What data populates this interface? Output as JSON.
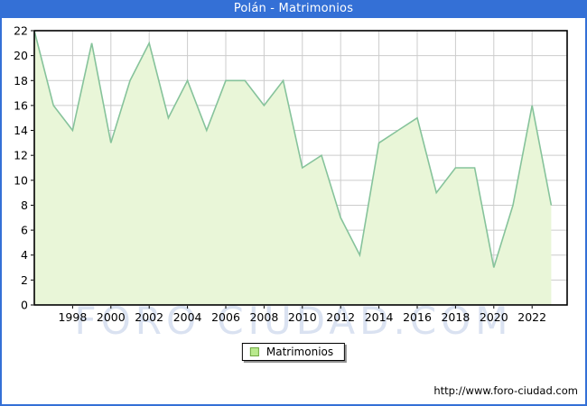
{
  "window": {
    "title": "Polán - Matrimonios"
  },
  "colors": {
    "titlebar_bg": "#3470d6",
    "titlebar_text": "#ffffff",
    "frame_border": "#3470d6",
    "plot_bg": "#ffffff",
    "plot_border": "#000000",
    "grid": "#cccccc",
    "area_fill": "#e9f6d8",
    "area_stroke": "#86c39b",
    "legend_swatch_fill": "#b9e98d",
    "legend_swatch_border": "#70a842",
    "watermark_text_color": "#d7dff0",
    "axis_text": "#000000"
  },
  "chart_data": {
    "type": "area",
    "title": "Polán - Matrimonios",
    "x": [
      1996,
      1997,
      1998,
      1999,
      2000,
      2001,
      2002,
      2003,
      2004,
      2005,
      2006,
      2007,
      2008,
      2009,
      2010,
      2011,
      2012,
      2013,
      2014,
      2015,
      2016,
      2017,
      2018,
      2019,
      2020,
      2021,
      2022,
      2023
    ],
    "series": [
      {
        "name": "Matrimonios",
        "values": [
          22,
          16,
          14,
          21,
          13,
          18,
          21,
          15,
          18,
          14,
          18,
          18,
          16,
          18,
          11,
          12,
          7,
          4,
          13,
          14,
          15,
          9,
          11,
          11,
          3,
          8,
          16,
          8
        ]
      }
    ],
    "xlabel": "",
    "ylabel": "",
    "ylim": [
      0,
      22
    ],
    "yticks": [
      0,
      2,
      4,
      6,
      8,
      10,
      12,
      14,
      16,
      18,
      20,
      22
    ],
    "xticks": [
      1998,
      2000,
      2002,
      2004,
      2006,
      2008,
      2010,
      2012,
      2014,
      2016,
      2018,
      2020,
      2022
    ],
    "grid": true,
    "legend_position": "bottom-center"
  },
  "legend": {
    "label": "Matrimonios"
  },
  "watermark": {
    "text": "FORO CIUDAD.COM"
  },
  "footer": {
    "url": "http://www.foro-ciudad.com"
  }
}
